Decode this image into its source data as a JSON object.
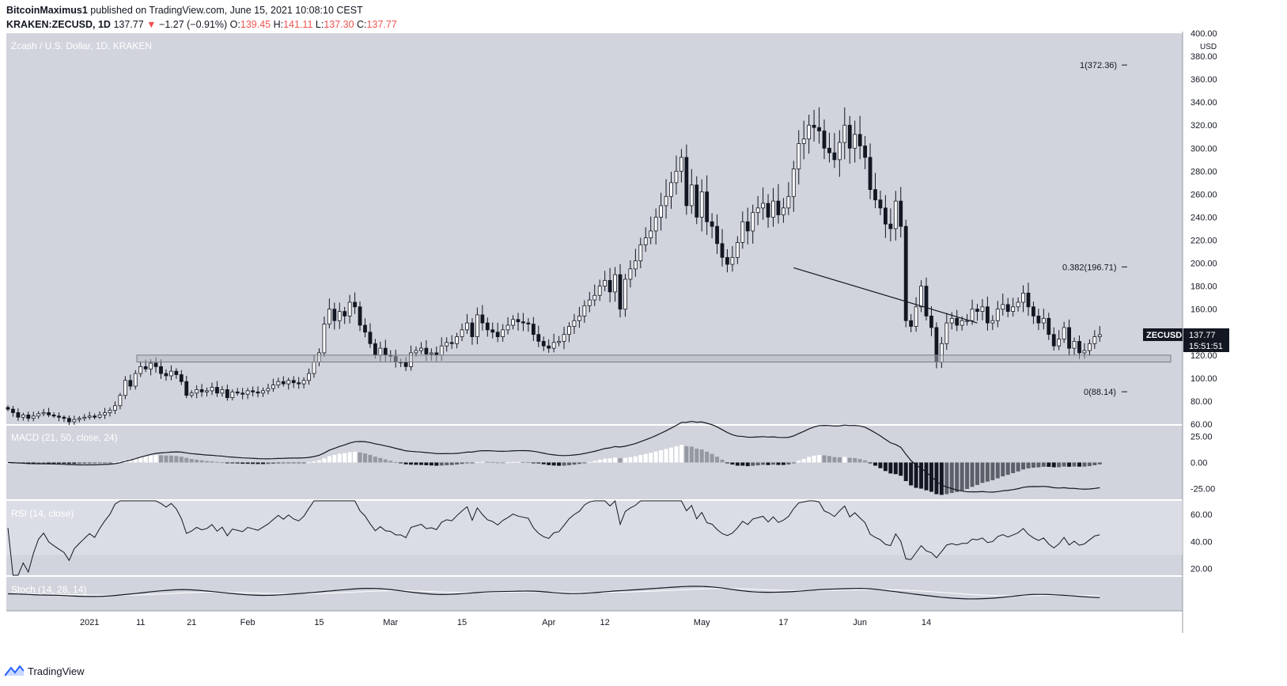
{
  "header": {
    "author": "BitcoinMaximus1",
    "published": "published on TradingView.com, June 15, 2021 10:08:10 CEST",
    "symbol": "KRAKEN:ZECUSD, 1D",
    "last": "137.77",
    "change": "−1.27 (−0.91%)",
    "o_label": "O:",
    "o": "139.45",
    "h_label": "H:",
    "h": "141.11",
    "l_label": "L:",
    "l": "137.30",
    "c_label": "C:",
    "c": "137.77"
  },
  "footer": {
    "brand": "TradingView"
  },
  "colors": {
    "bg": "#d1d4dc",
    "up": "#ffffff",
    "down": "#131722",
    "line": "#131722",
    "accent_red": "#ef5350"
  },
  "chart_data": [
    {
      "type": "candlestick",
      "title": "Zcash / U.S. Dollar, 1D, KRAKEN",
      "ylabel": "USD",
      "ylim": [
        60,
        400
      ],
      "y_ticks": [
        "400.00",
        "380.00",
        "360.00",
        "340.00",
        "320.00",
        "300.00",
        "280.00",
        "260.00",
        "240.00",
        "220.00",
        "200.00",
        "180.00",
        "160.00",
        "140.00",
        "120.00",
        "100.00",
        "80.00",
        "60.00"
      ],
      "x_ticks": [
        "2021",
        "11",
        "21",
        "Feb",
        "15",
        "Mar",
        "15",
        "Apr",
        "12",
        "May",
        "17",
        "Jun",
        "14"
      ],
      "price_label": {
        "symbol": "ZECUSD",
        "price": "137.77",
        "countdown": "15:51:51"
      },
      "fib_levels": [
        {
          "label": "1(372.36)",
          "value": 372.36
        },
        {
          "label": "0.382(196.71)",
          "value": 196.71
        },
        {
          "label": "0(88.14)",
          "value": 88.14
        }
      ],
      "support_zone": [
        114,
        120
      ],
      "resistance_line": [
        {
          "date": "2021-05-19",
          "value": 196
        },
        {
          "date": "2021-06-24",
          "value": 148
        }
      ],
      "closes": [
        73,
        70,
        66,
        68,
        65,
        67,
        69,
        70,
        68,
        67,
        66,
        65,
        62,
        64,
        65,
        66,
        67,
        66,
        68,
        70,
        72,
        76,
        85,
        98,
        93,
        104,
        110,
        108,
        113,
        110,
        104,
        102,
        106,
        103,
        97,
        85,
        87,
        90,
        88,
        89,
        92,
        87,
        90,
        83,
        88,
        87,
        86,
        89,
        88,
        87,
        89,
        91,
        94,
        97,
        95,
        98,
        96,
        95,
        98,
        104,
        114,
        122,
        147,
        160,
        150,
        158,
        154,
        166,
        162,
        146,
        140,
        130,
        120,
        126,
        120,
        119,
        114,
        114,
        110,
        122,
        124,
        126,
        121,
        122,
        120,
        128,
        131,
        130,
        136,
        142,
        148,
        136,
        155,
        148,
        142,
        140,
        136,
        142,
        146,
        151,
        149,
        148,
        147,
        138,
        132,
        128,
        126,
        131,
        132,
        138,
        145,
        150,
        154,
        163,
        168,
        172,
        180,
        185,
        175,
        190,
        160,
        186,
        195,
        202,
        216,
        222,
        228,
        240,
        250,
        258,
        270,
        280,
        292,
        250,
        268,
        240,
        262,
        236,
        232,
        217,
        205,
        199,
        205,
        218,
        236,
        228,
        244,
        248,
        252,
        240,
        254,
        242,
        248,
        258,
        282,
        304,
        308,
        320,
        318,
        315,
        300,
        296,
        290,
        305,
        320,
        300,
        312,
        302,
        292,
        264,
        255,
        248,
        234,
        230,
        254,
        232,
        150,
        145,
        162,
        180,
        154,
        144,
        114,
        130,
        148,
        152,
        146,
        150,
        150,
        160,
        158,
        162,
        148,
        150,
        160,
        164,
        158,
        162,
        166,
        174,
        162,
        154,
        148,
        152,
        138,
        128,
        134,
        144,
        126,
        132,
        122,
        124,
        130,
        136,
        137.77
      ]
    },
    {
      "type": "macd",
      "title": "MACD (21, 50, close, 24)",
      "y_ticks": [
        "25.00",
        "0.00",
        "-25.00"
      ],
      "ylim": [
        -35,
        35
      ]
    },
    {
      "type": "rsi",
      "title": "RSI (14, close)",
      "y_ticks": [
        "60.00",
        "40.00",
        "20.00"
      ],
      "ylim": [
        15,
        70
      ],
      "band": [
        30,
        70
      ]
    },
    {
      "type": "stochastic",
      "title": "Stoch (14, 28, 14)",
      "ylim": [
        0,
        100
      ]
    }
  ]
}
